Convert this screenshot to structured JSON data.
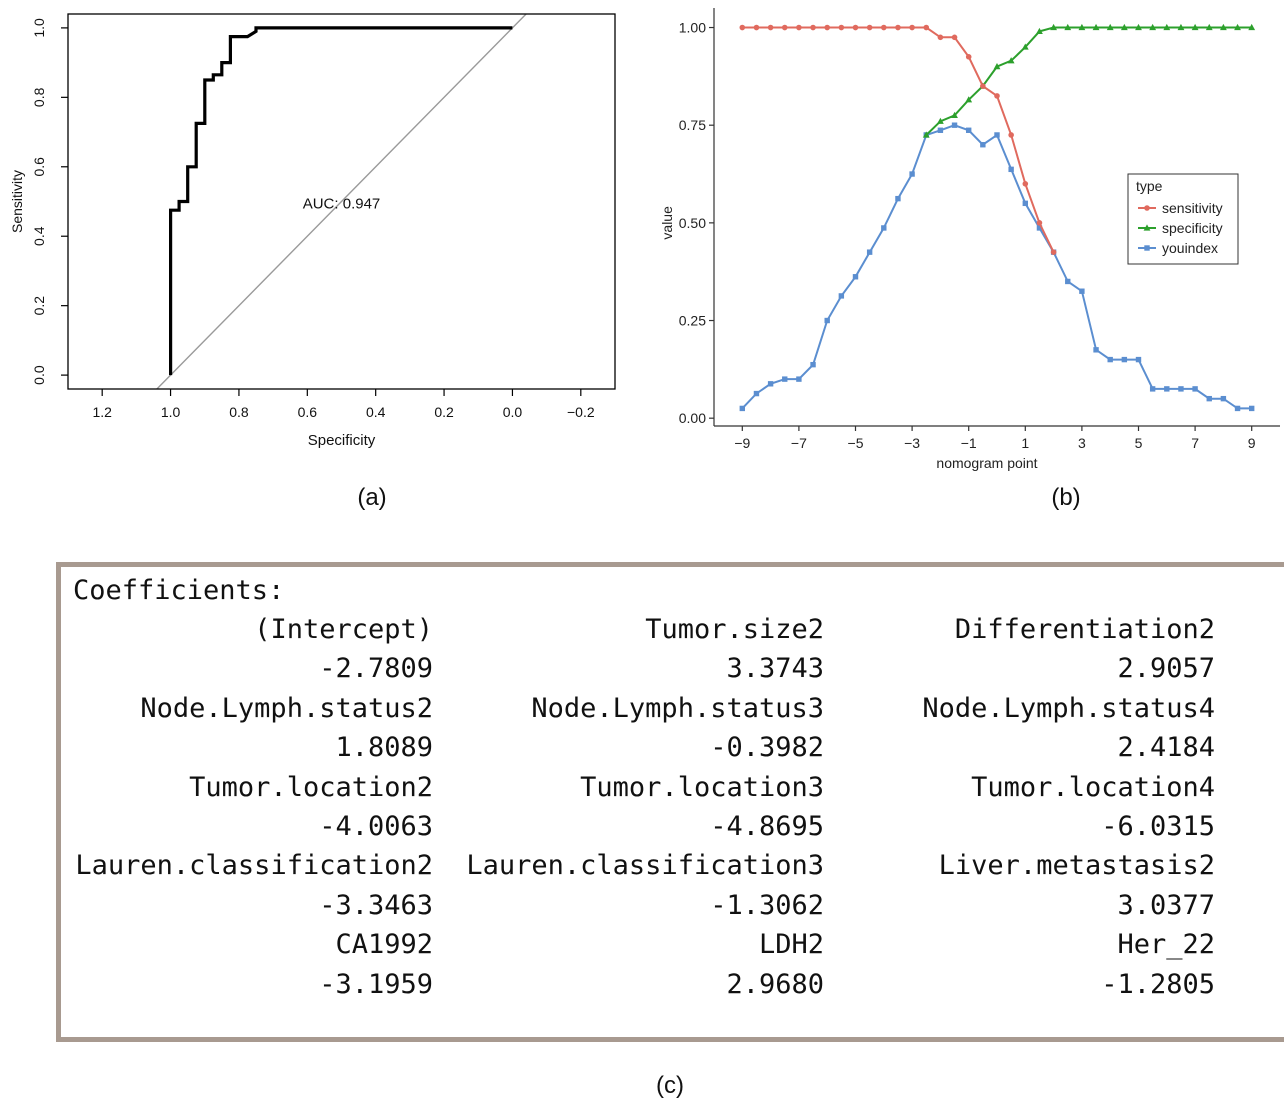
{
  "captions": {
    "a": "(a)",
    "b": "(b)",
    "c": "(c)"
  },
  "chart_data": [
    {
      "id": "a",
      "type": "line",
      "xlabel": "Specificity",
      "ylabel": "Sensitivity",
      "xlim": [
        1.3,
        -0.3
      ],
      "ylim": [
        -0.04,
        1.04
      ],
      "x_reversed": true,
      "x_ticks": [
        1.2,
        1.0,
        0.8,
        0.6,
        0.4,
        0.2,
        0.0,
        -0.2
      ],
      "x_tick_labels": [
        "1.2",
        "1.0",
        "0.8",
        "0.6",
        "0.4",
        "0.2",
        "0.0",
        "−0.2"
      ],
      "y_ticks": [
        0.0,
        0.2,
        0.4,
        0.6,
        0.8,
        1.0
      ],
      "y_tick_labels": [
        "0.0",
        "0.2",
        "0.4",
        "0.6",
        "0.8",
        "1.0"
      ],
      "annotation": "AUC: 0.947",
      "annotation_at": {
        "x": 0.5,
        "y": 0.48
      },
      "diagonal": {
        "from": [
          1,
          0
        ],
        "to": [
          0,
          1
        ]
      },
      "curve": {
        "specificity": [
          1.0,
          1.0,
          1.0,
          0.975,
          0.975,
          0.95,
          0.95,
          0.925,
          0.925,
          0.9,
          0.9,
          0.9,
          0.875,
          0.875,
          0.85,
          0.85,
          0.825,
          0.825,
          0.8,
          0.8,
          0.775,
          0.75,
          0.75,
          0.0
        ],
        "sensitivity": [
          0.0,
          0.475,
          0.475,
          0.475,
          0.5,
          0.5,
          0.6,
          0.6,
          0.725,
          0.725,
          0.825,
          0.85,
          0.85,
          0.865,
          0.865,
          0.9,
          0.9,
          0.975,
          0.975,
          0.975,
          0.975,
          0.99,
          1.0,
          1.0
        ]
      },
      "colors": {
        "curve": "#000000",
        "diagonal": "#9a9a9a"
      }
    },
    {
      "id": "b",
      "type": "line",
      "xlabel": "nomogram point",
      "ylabel": "value",
      "xlim": [
        -10,
        10
      ],
      "ylim": [
        -0.02,
        1.05
      ],
      "x_ticks": [
        -9,
        -7,
        -5,
        -3,
        -1,
        1,
        3,
        5,
        7,
        9
      ],
      "x_tick_labels": [
        "−9",
        "−7",
        "−5",
        "−3",
        "−1",
        "1",
        "3",
        "5",
        "7",
        "9"
      ],
      "y_ticks": [
        0.0,
        0.25,
        0.5,
        0.75,
        1.0
      ],
      "y_tick_labels": [
        "0.00",
        "0.25",
        "0.50",
        "0.75",
        "1.00"
      ],
      "legend": {
        "title": "type",
        "position": "right"
      },
      "x": [
        -9,
        -8.5,
        -8,
        -7.5,
        -7,
        -6.5,
        -6,
        -5.5,
        -5,
        -4.5,
        -4,
        -3.5,
        -3,
        -2.5,
        -2,
        -1.5,
        -1,
        -0.5,
        0,
        0.5,
        1,
        1.5,
        2,
        2.5,
        3,
        3.5,
        4,
        4.5,
        5,
        5.5,
        6,
        6.5,
        7,
        7.5,
        8,
        8.5,
        9
      ],
      "series": [
        {
          "name": "sensitivity",
          "color": "#e06a5e",
          "marker": "circle",
          "values": [
            1.0,
            1.0,
            1.0,
            1.0,
            1.0,
            1.0,
            1.0,
            1.0,
            1.0,
            1.0,
            1.0,
            1.0,
            1.0,
            1.0,
            0.975,
            0.975,
            0.925,
            0.85,
            0.825,
            0.725,
            0.6,
            0.5,
            0.425,
            null,
            null,
            null,
            null,
            null,
            null,
            null,
            null,
            null,
            null,
            null,
            null,
            null,
            null
          ]
        },
        {
          "name": "specificity",
          "color": "#2ca02c",
          "marker": "triangle",
          "values": [
            null,
            null,
            null,
            null,
            null,
            null,
            null,
            null,
            null,
            null,
            null,
            null,
            null,
            0.725,
            0.76,
            0.775,
            0.815,
            0.85,
            0.9,
            0.915,
            0.95,
            0.99,
            1.0,
            1.0,
            1.0,
            1.0,
            1.0,
            1.0,
            1.0,
            1.0,
            1.0,
            1.0,
            1.0,
            1.0,
            1.0,
            1.0,
            1.0
          ]
        },
        {
          "name": "youindex",
          "color": "#5b8ed0",
          "marker": "square",
          "values": [
            0.025,
            0.063,
            0.088,
            0.1,
            0.1,
            0.137,
            0.25,
            0.313,
            0.362,
            0.425,
            0.487,
            0.562,
            0.625,
            0.725,
            0.737,
            0.75,
            0.737,
            0.7,
            0.725,
            0.637,
            0.55,
            0.487,
            0.425,
            0.35,
            0.325,
            0.175,
            0.15,
            0.15,
            0.15,
            0.075,
            0.075,
            0.075,
            0.075,
            0.05,
            0.05,
            0.025,
            0.025
          ]
        }
      ]
    }
  ],
  "coefficients": {
    "title": "Coefficients:",
    "rows": [
      [
        [
          "(Intercept)",
          "Tumor.size2",
          "Differentiation2"
        ],
        [
          "-2.7809",
          "3.3743",
          "2.9057"
        ]
      ],
      [
        [
          "Node.Lymph.status2",
          "Node.Lymph.status3",
          "Node.Lymph.status4"
        ],
        [
          "1.8089",
          "-0.3982",
          "2.4184"
        ]
      ],
      [
        [
          "Tumor.location2",
          "Tumor.location3",
          "Tumor.location4"
        ],
        [
          "-4.0063",
          "-4.8695",
          "-6.0315"
        ]
      ],
      [
        [
          "Lauren.classification2",
          "Lauren.classification3",
          "Liver.metastasis2"
        ],
        [
          "-3.3463",
          "-1.3062",
          "3.0377"
        ]
      ],
      [
        [
          "CA1992",
          "LDH2",
          "Her_22"
        ],
        [
          "-3.1959",
          "2.9680",
          "-1.2805"
        ]
      ]
    ]
  }
}
